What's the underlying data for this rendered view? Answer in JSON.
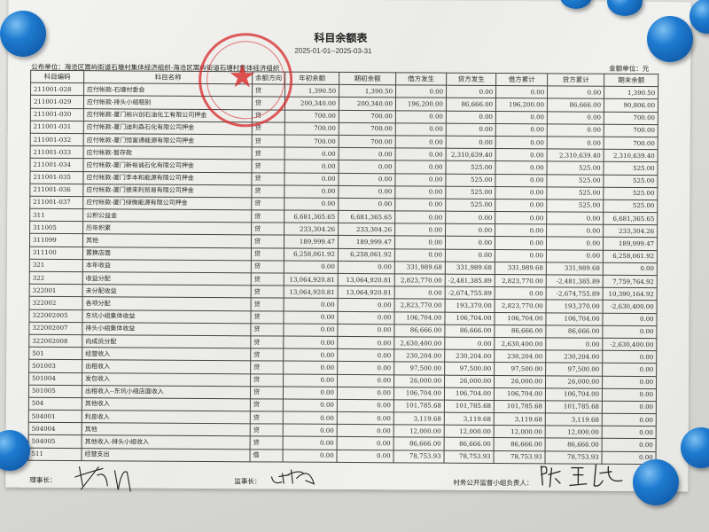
{
  "header": {
    "title": "科目余额表",
    "period": "2025-01-01--2025-03-31",
    "unit_label": "公布单位：海沧区嵩屿街道石塘村集体经济组织-海沧区嵩屿街道石塘村集体经济组织",
    "money_unit": "金额单位：元"
  },
  "columns": [
    "科目编码",
    "科目名称",
    "余额方向",
    "年初余额",
    "期初余额",
    "借方发生",
    "贷方发生",
    "借方累计",
    "贷方累计",
    "期末余额"
  ],
  "rows": [
    [
      "211001-028",
      "应付帐款-石塘村委会",
      "贷",
      "1,390.50",
      "1,390.50",
      "0.00",
      "0.00",
      "0.00",
      "0.00",
      "1,390.50"
    ],
    [
      "211001-029",
      "应付帐款-排头小组租别",
      "贷",
      "200,340.00",
      "200,340.00",
      "196,200.00",
      "86,666.00",
      "196,200.00",
      "86,666.00",
      "90,806.00"
    ],
    [
      "211001-030",
      "应付帐款-厦门裕兴创石油化工有限公司押金",
      "贷",
      "700.00",
      "700.00",
      "0.00",
      "0.00",
      "0.00",
      "0.00",
      "700.00"
    ],
    [
      "211001-031",
      "应付帐款-厦门迪利森石化有限公司押金",
      "贷",
      "700.00",
      "700.00",
      "0.00",
      "0.00",
      "0.00",
      "0.00",
      "700.00"
    ],
    [
      "211001-032",
      "应付帐款-厦门恒富通能源有限公司押金",
      "贷",
      "700.00",
      "700.00",
      "0.00",
      "0.00",
      "0.00",
      "0.00",
      "700.00"
    ],
    [
      "211001-033",
      "应付帐款-暂存款",
      "贷",
      "0.00",
      "0.00",
      "0.00",
      "2,310,639.40",
      "0.00",
      "2,310,639.40",
      "2,310,639.40"
    ],
    [
      "211001-034",
      "应付帐款-厦门新裕诚石化有限公司押金",
      "贷",
      "0.00",
      "0.00",
      "0.00",
      "525.00",
      "0.00",
      "525.00",
      "525.00"
    ],
    [
      "211001-035",
      "应付帐款-厦门李本和能源有限公司押金",
      "贷",
      "0.00",
      "0.00",
      "0.00",
      "525.00",
      "0.00",
      "525.00",
      "525.00"
    ],
    [
      "211001-036",
      "应付帐款-厦门德来利贸易有限公司押金",
      "贷",
      "0.00",
      "0.00",
      "0.00",
      "525.00",
      "0.00",
      "525.00",
      "525.00"
    ],
    [
      "211001-037",
      "应付帐款-厦门绿微能源有限公司押金",
      "贷",
      "0.00",
      "0.00",
      "0.00",
      "525.00",
      "0.00",
      "525.00",
      "525.00"
    ],
    [
      "311",
      "公积公益金",
      "贷",
      "6,681,365.65",
      "6,681,365.65",
      "0.00",
      "0.00",
      "0.00",
      "0.00",
      "6,681,365.65"
    ],
    [
      "311005",
      "历年积累",
      "贷",
      "233,304.26",
      "233,304.26",
      "0.00",
      "0.00",
      "0.00",
      "0.00",
      "233,304.26"
    ],
    [
      "311099",
      "其他",
      "贷",
      "189,999.47",
      "189,999.47",
      "0.00",
      "0.00",
      "0.00",
      "0.00",
      "189,999.47"
    ],
    [
      "311100",
      "置换店面",
      "贷",
      "6,258,061.92",
      "6,258,061.92",
      "0.00",
      "0.00",
      "0.00",
      "0.00",
      "6,258,061.92"
    ],
    [
      "321",
      "本年收益",
      "贷",
      "0.00",
      "0.00",
      "331,989.68",
      "331,989.68",
      "331,989.68",
      "331,989.68",
      "0.00"
    ],
    [
      "322",
      "收益分配",
      "贷",
      "13,064,920.81",
      "13,064,920.81",
      "2,823,770.00",
      "-2,481,385.89",
      "2,823,770.00",
      "-2,481,385.89",
      "7,759,764.92"
    ],
    [
      "322001",
      "未分配收益",
      "贷",
      "13,064,920.81",
      "13,064,920.81",
      "0.00",
      "-2,674,755.89",
      "0.00",
      "-2,674,755.89",
      "10,390,164.92"
    ],
    [
      "322002",
      "各项分配",
      "贷",
      "0.00",
      "0.00",
      "2,823,770.00",
      "193,370.00",
      "2,823,770.00",
      "193,370.00",
      "-2,630,400.00"
    ],
    [
      "322002005",
      "东坑小组集体收益",
      "贷",
      "0.00",
      "0.00",
      "106,704.00",
      "106,704.00",
      "106,704.00",
      "106,704.00",
      "0.00"
    ],
    [
      "322002007",
      "排头小组集体收益",
      "贷",
      "0.00",
      "0.00",
      "86,666.00",
      "86,666.00",
      "86,666.00",
      "86,666.00",
      "0.00"
    ],
    [
      "322002008",
      "向成员分配",
      "贷",
      "0.00",
      "0.00",
      "2,630,400.00",
      "0.00",
      "2,630,400.00",
      "0.00",
      "-2,630,400.00"
    ],
    [
      "501",
      "经营收入",
      "贷",
      "0.00",
      "0.00",
      "230,204.00",
      "230,204.00",
      "230,204.00",
      "230,204.00",
      "0.00"
    ],
    [
      "501003",
      "出租收入",
      "贷",
      "0.00",
      "0.00",
      "97,500.00",
      "97,500.00",
      "97,500.00",
      "97,500.00",
      "0.00"
    ],
    [
      "501004",
      "发包收入",
      "贷",
      "0.00",
      "0.00",
      "26,000.00",
      "26,000.00",
      "26,000.00",
      "26,000.00",
      "0.00"
    ],
    [
      "501005",
      "出租收入--东坑小组店面收入",
      "贷",
      "0.00",
      "0.00",
      "106,704.00",
      "106,704.00",
      "106,704.00",
      "106,704.00",
      "0.00"
    ],
    [
      "504",
      "其他收入",
      "贷",
      "0.00",
      "0.00",
      "101,785.68",
      "101,785.68",
      "101,785.68",
      "101,785.68",
      "0.00"
    ],
    [
      "504001",
      "利息收入",
      "贷",
      "0.00",
      "0.00",
      "3,119.68",
      "3,119.68",
      "3,119.68",
      "3,119.68",
      "0.00"
    ],
    [
      "504004",
      "其他",
      "贷",
      "0.00",
      "0.00",
      "12,000.00",
      "12,000.00",
      "12,000.00",
      "12,000.00",
      "0.00"
    ],
    [
      "504005",
      "其他收入-排头小组收入",
      "贷",
      "0.00",
      "0.00",
      "86,666.00",
      "86,666.00",
      "86,666.00",
      "86,666.00",
      "0.00"
    ],
    [
      "511",
      "经营支出",
      "借",
      "0.00",
      "0.00",
      "78,753.93",
      "78,753.93",
      "78,753.93",
      "78,753.93",
      "0.00"
    ]
  ],
  "footer": {
    "chairman_label": "理事长：",
    "supervisor_label": "监事长：",
    "oversight_label": "村务公开监督小组负责人："
  },
  "colors": {
    "stamp": "#d72828",
    "pin": "#1e7bd0"
  }
}
